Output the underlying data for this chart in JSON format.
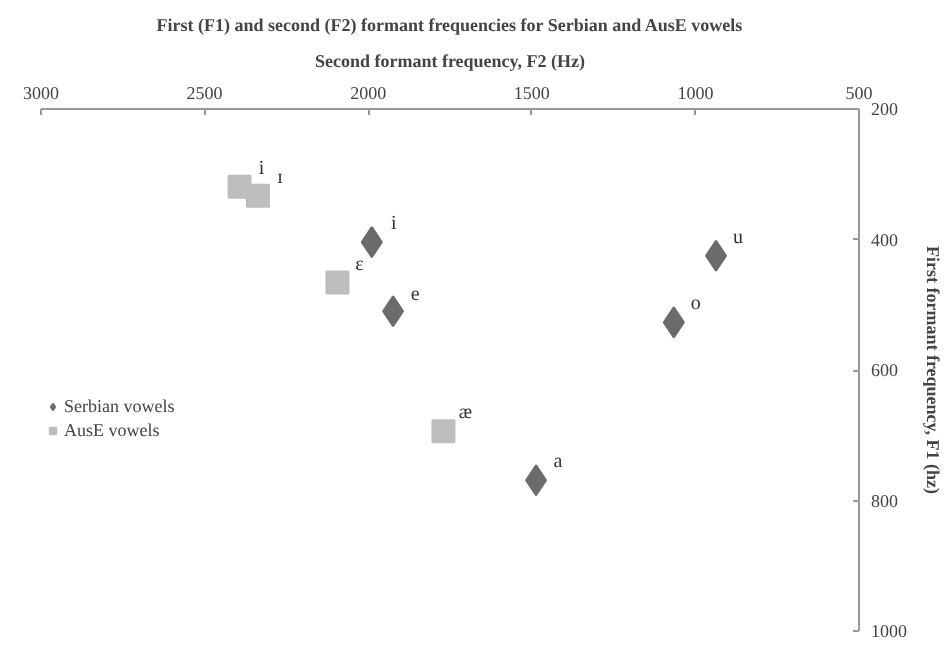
{
  "chart_data": {
    "type": "scatter",
    "title": "First (F1) and second (F2) formant frequencies for Serbian and AusE vowels",
    "xlabel": "Second formant frequency, F2 (Hz)",
    "ylabel": "First formant frequency, F1 (hz)",
    "xlim": [
      3000,
      500
    ],
    "xticks": [
      3000,
      2500,
      2000,
      1500,
      1000,
      500
    ],
    "ylim": [
      1000,
      200
    ],
    "yticks": [
      200,
      400,
      600,
      800,
      1000
    ],
    "grid": false,
    "legend": "left",
    "series": [
      {
        "name": "Serbian vowels",
        "color": "#6b6b6b",
        "marker": "diamond",
        "x": [
          1989,
          1924,
          1487,
          1066,
          937
        ],
        "values": [
          404,
          510,
          769,
          527,
          425
        ]
      },
      {
        "name": "AusE vowels",
        "color": "#bdbdbd",
        "marker": "square",
        "x": [
          2393,
          2337,
          2094,
          1770
        ],
        "values": [
          319,
          333,
          466,
          694
        ]
      }
    ],
    "annotations": [
      {
        "text": "i",
        "x": 2393,
        "y": 319
      },
      {
        "text": "ɪ",
        "x": 2337,
        "y": 333
      },
      {
        "text": "i",
        "x": 1989,
        "y": 404
      },
      {
        "text": "ɛ",
        "x": 2094,
        "y": 466
      },
      {
        "text": "e",
        "x": 1924,
        "y": 510
      },
      {
        "text": "æ",
        "x": 1770,
        "y": 694
      },
      {
        "text": "a",
        "x": 1487,
        "y": 769
      },
      {
        "text": "u",
        "x": 937,
        "y": 425
      },
      {
        "text": "o",
        "x": 1066,
        "y": 527
      }
    ]
  }
}
